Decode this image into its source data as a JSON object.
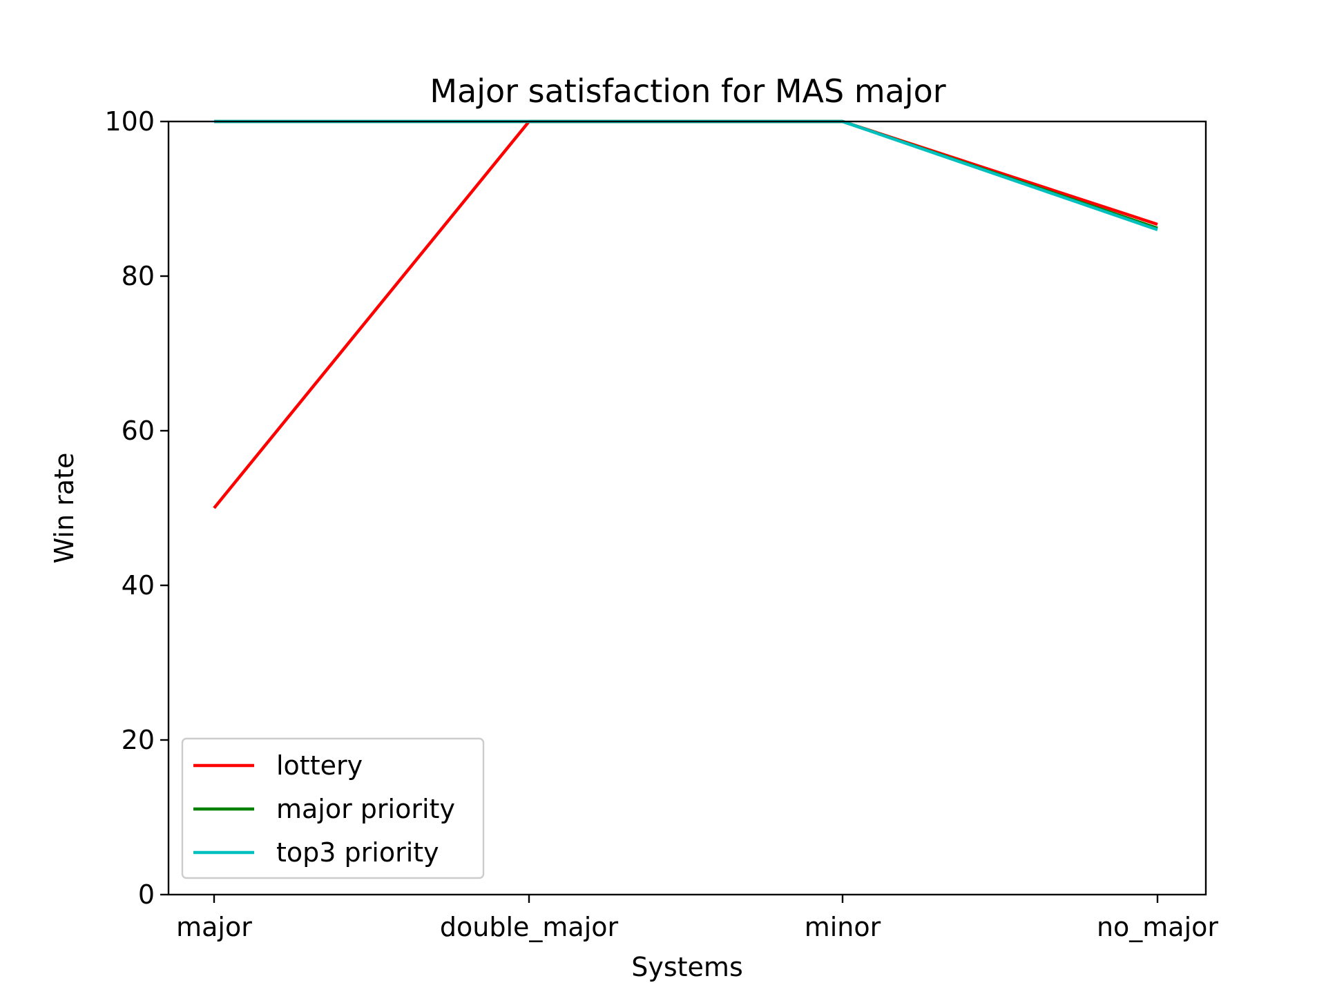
{
  "chart_data": {
    "type": "line",
    "title": "Major satisfaction for MAS major",
    "xlabel": "Systems",
    "ylabel": "Win rate",
    "categories": [
      "major",
      "double_major",
      "minor",
      "no_major"
    ],
    "ylim": [
      0,
      100
    ],
    "yticks": [
      0,
      20,
      40,
      60,
      80,
      100
    ],
    "grid": false,
    "legend_position": "lower-left",
    "series": [
      {
        "name": "lottery",
        "color": "#ff0000",
        "values": [
          50,
          100,
          100,
          86.7
        ]
      },
      {
        "name": "major priority",
        "color": "#008000",
        "values": [
          100,
          100,
          100,
          86.2
        ]
      },
      {
        "name": "top3 priority",
        "color": "#00bfbf",
        "values": [
          100,
          100,
          100,
          86.0
        ]
      }
    ]
  }
}
